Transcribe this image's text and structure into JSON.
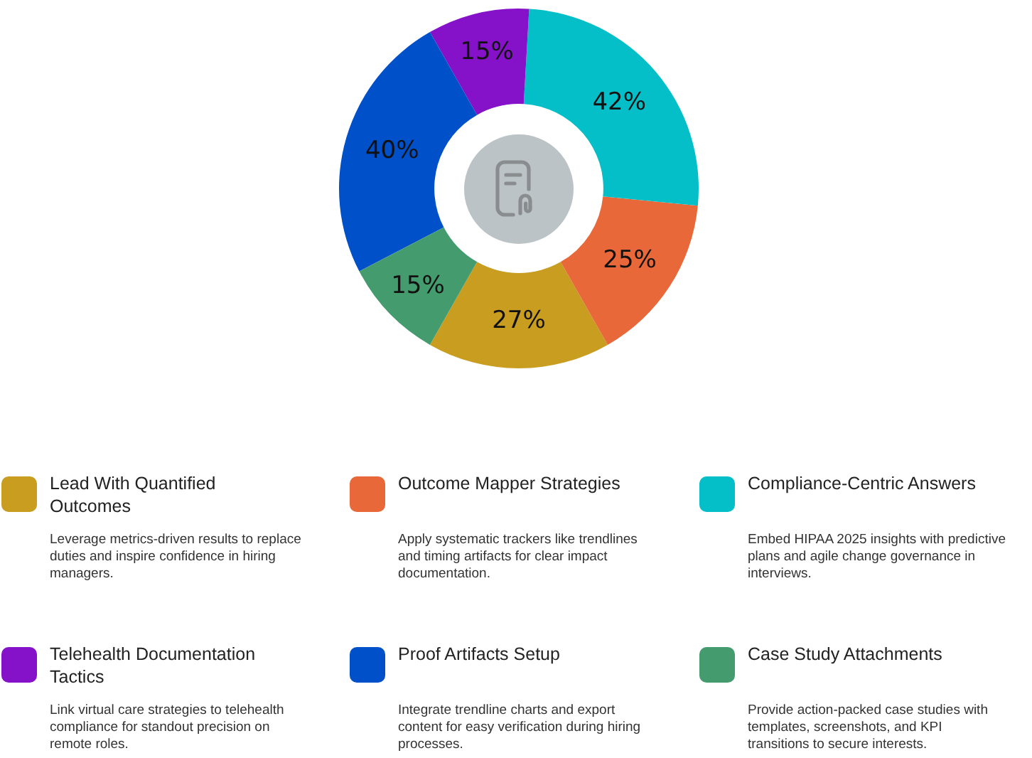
{
  "chart_data": {
    "type": "donut",
    "categories": [
      "Lead With Quantified Outcomes",
      "Outcome Mapper Strategies",
      "Compliance-Centric Answers",
      "Telehealth Documentation Tactics",
      "Proof Artifacts Setup",
      "Case Study Attachments"
    ],
    "values": [
      27,
      25,
      42,
      15,
      40,
      15
    ],
    "value_labels": [
      "27%",
      "25%",
      "42%",
      "15%",
      "40%",
      "15%"
    ],
    "colors": [
      "#c99d20",
      "#e8683a",
      "#05bfc8",
      "#8512c9",
      "#0051c9",
      "#449b6d"
    ],
    "legend": "bottom",
    "annotations": [
      "Leverage metrics-driven results to replace duties and inspire confidence in hiring managers.",
      "Apply systematic trackers like trendlines and timing artifacts for clear impact documentation.",
      "Embed HIPAA 2025 insights with predictive plans and agile change governance in interviews.",
      "Link virtual care strategies to telehealth compliance for standout precision on remote roles.",
      "Integrate trendline charts and export content for easy verification during hiring processes.",
      "Provide action-packed case studies with templates, screenshots, and KPI transitions to secure interests."
    ]
  }
}
